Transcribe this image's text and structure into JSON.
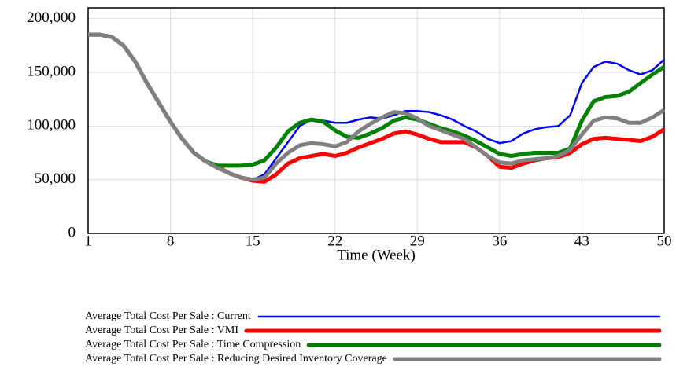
{
  "chart_data": {
    "type": "line",
    "xlabel": "Time (Week)",
    "x": [
      1,
      2,
      3,
      4,
      5,
      6,
      7,
      8,
      9,
      10,
      11,
      12,
      13,
      14,
      15,
      16,
      17,
      18,
      19,
      20,
      21,
      22,
      23,
      24,
      25,
      26,
      27,
      28,
      29,
      30,
      31,
      32,
      33,
      34,
      35,
      36,
      37,
      38,
      39,
      40,
      41,
      42,
      43,
      44,
      45,
      46,
      47,
      48,
      49,
      50
    ],
    "xlim": [
      1,
      50
    ],
    "xticks": [
      1,
      8,
      15,
      22,
      29,
      36,
      43,
      50
    ],
    "ylim": [
      0,
      210000
    ],
    "yticks": [
      0,
      {
        "value": 50000,
        "label": "50,000"
      },
      {
        "value": 100000,
        "label": "100,000"
      },
      {
        "value": 150000,
        "label": "150,000"
      },
      {
        "value": 200000,
        "label": "200,000"
      }
    ],
    "grid": true,
    "series": [
      {
        "name": "Average Total Cost Per Sale : Current",
        "color": "#0000ff",
        "values": [
          185000,
          185000,
          183000,
          175000,
          160000,
          140000,
          122000,
          104000,
          88000,
          75000,
          67000,
          60000,
          56000,
          52000,
          50000,
          55000,
          70000,
          85000,
          100000,
          106000,
          105000,
          103000,
          103000,
          106000,
          108000,
          107000,
          110000,
          114000,
          114000,
          113000,
          110000,
          106000,
          100000,
          95000,
          88000,
          84000,
          86000,
          93000,
          97000,
          99000,
          100000,
          110000,
          140000,
          155000,
          160000,
          158000,
          152000,
          148000,
          152000,
          162000
        ]
      },
      {
        "name": "Average Total Cost Per Sale : VMI",
        "color": "#ff0000",
        "values": [
          185000,
          185000,
          183000,
          175000,
          160000,
          140000,
          122000,
          104000,
          88000,
          75000,
          67000,
          62000,
          56000,
          52000,
          49000,
          48000,
          55000,
          65000,
          70000,
          72000,
          74000,
          72000,
          75000,
          80000,
          84000,
          88000,
          93000,
          95000,
          92000,
          88000,
          85000,
          85000,
          85000,
          80000,
          72000,
          62000,
          61000,
          65000,
          68000,
          70000,
          71000,
          75000,
          83000,
          88000,
          89000,
          88000,
          87000,
          86000,
          90000,
          97000
        ]
      },
      {
        "name": "Average Total Cost Per Sale : Time Compression",
        "color": "#008000",
        "values": [
          185000,
          185000,
          183000,
          175000,
          160000,
          140000,
          122000,
          104000,
          88000,
          75000,
          67000,
          63000,
          63000,
          63000,
          64000,
          68000,
          80000,
          95000,
          103000,
          106000,
          104000,
          96000,
          90000,
          89000,
          93000,
          98000,
          105000,
          108000,
          106000,
          102000,
          98000,
          95000,
          91000,
          86000,
          80000,
          74000,
          72000,
          74000,
          75000,
          75000,
          75000,
          79000,
          105000,
          123000,
          127000,
          128000,
          132000,
          140000,
          148000,
          155000
        ]
      },
      {
        "name": "Average Total Cost Per Sale : Reducing Desired Inventory Coverage",
        "color": "#808080",
        "values": [
          185000,
          185000,
          183000,
          175000,
          160000,
          140000,
          122000,
          104000,
          88000,
          75000,
          67000,
          61000,
          56000,
          52000,
          50000,
          52000,
          65000,
          75000,
          82000,
          84000,
          83000,
          81000,
          85000,
          95000,
          102000,
          108000,
          113000,
          112000,
          107000,
          100000,
          96000,
          92000,
          88000,
          80000,
          72000,
          66000,
          65000,
          68000,
          69000,
          70000,
          72000,
          78000,
          92000,
          105000,
          108000,
          107000,
          103000,
          103000,
          108000,
          115000
        ]
      }
    ]
  }
}
